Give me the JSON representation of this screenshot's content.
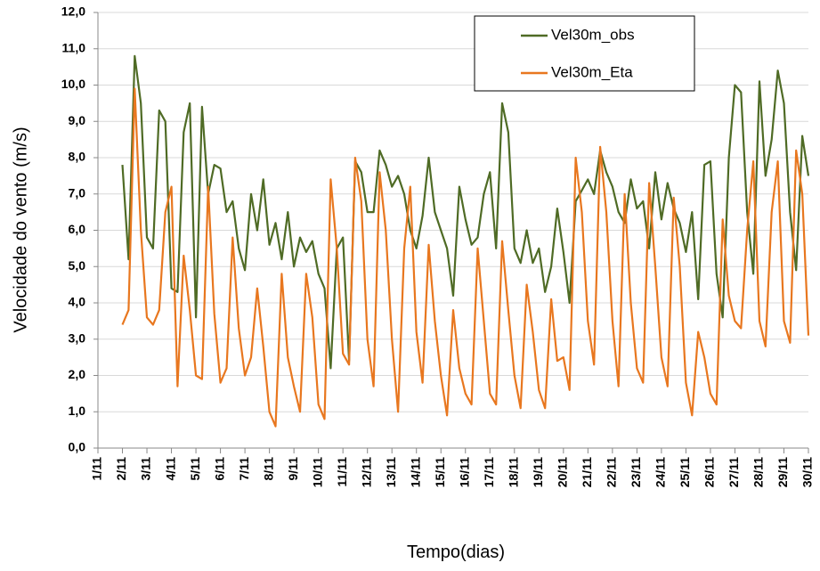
{
  "chart_data": {
    "type": "line",
    "y_label": "Velocidade do vento (m/s)",
    "x_label": "Tempo(dias)",
    "xlim": [
      1,
      30
    ],
    "ylim": [
      0,
      12
    ],
    "grid": true,
    "legend": "top-right",
    "xticks": [
      {
        "value": 1,
        "label": "1/11"
      },
      {
        "value": 2,
        "label": "2/11"
      },
      {
        "value": 3,
        "label": "3/11"
      },
      {
        "value": 4,
        "label": "4/11"
      },
      {
        "value": 5,
        "label": "5/11"
      },
      {
        "value": 6,
        "label": "6/11"
      },
      {
        "value": 7,
        "label": "7/11"
      },
      {
        "value": 8,
        "label": "8/11"
      },
      {
        "value": 9,
        "label": "9/11"
      },
      {
        "value": 10,
        "label": "10/11"
      },
      {
        "value": 11,
        "label": "11/11"
      },
      {
        "value": 12,
        "label": "12/11"
      },
      {
        "value": 13,
        "label": "13/11"
      },
      {
        "value": 14,
        "label": "14/11"
      },
      {
        "value": 15,
        "label": "15/11"
      },
      {
        "value": 16,
        "label": "16/11"
      },
      {
        "value": 17,
        "label": "17/11"
      },
      {
        "value": 18,
        "label": "18/11"
      },
      {
        "value": 19,
        "label": "19/11"
      },
      {
        "value": 20,
        "label": "20/11"
      },
      {
        "value": 21,
        "label": "21/11"
      },
      {
        "value": 22,
        "label": "22/11"
      },
      {
        "value": 23,
        "label": "23/11"
      },
      {
        "value": 24,
        "label": "24/11"
      },
      {
        "value": 25,
        "label": "25/11"
      },
      {
        "value": 26,
        "label": "26/11"
      },
      {
        "value": 27,
        "label": "27/11"
      },
      {
        "value": 28,
        "label": "28/11"
      },
      {
        "value": 29,
        "label": "29/11"
      },
      {
        "value": 30,
        "label": "30/11"
      }
    ],
    "yticks": [
      {
        "value": 0,
        "label": "0,0"
      },
      {
        "value": 1,
        "label": "1,0"
      },
      {
        "value": 2,
        "label": "2,0"
      },
      {
        "value": 3,
        "label": "3,0"
      },
      {
        "value": 4,
        "label": "4,0"
      },
      {
        "value": 5,
        "label": "5,0"
      },
      {
        "value": 6,
        "label": "6,0"
      },
      {
        "value": 7,
        "label": "7,0"
      },
      {
        "value": 8,
        "label": "8,0"
      },
      {
        "value": 9,
        "label": "9,0"
      },
      {
        "value": 10,
        "label": "10,0"
      },
      {
        "value": 11,
        "label": "11,0"
      },
      {
        "value": 12,
        "label": "12,0"
      }
    ],
    "x": [
      2,
      2.25,
      2.5,
      2.75,
      3,
      3.25,
      3.5,
      3.75,
      4,
      4.25,
      4.5,
      4.75,
      5,
      5.25,
      5.5,
      5.75,
      6,
      6.25,
      6.5,
      6.75,
      7,
      7.25,
      7.5,
      7.75,
      8,
      8.25,
      8.5,
      8.75,
      9,
      9.25,
      9.5,
      9.75,
      10,
      10.25,
      10.5,
      10.75,
      11,
      11.25,
      11.5,
      11.75,
      12,
      12.25,
      12.5,
      12.75,
      13,
      13.25,
      13.5,
      13.75,
      14,
      14.25,
      14.5,
      14.75,
      15,
      15.25,
      15.5,
      15.75,
      16,
      16.25,
      16.5,
      16.75,
      17,
      17.25,
      17.5,
      17.75,
      18,
      18.25,
      18.5,
      18.75,
      19,
      19.25,
      19.5,
      19.75,
      20,
      20.25,
      20.5,
      20.75,
      21,
      21.25,
      21.5,
      21.75,
      22,
      22.25,
      22.5,
      22.75,
      23,
      23.25,
      23.5,
      23.75,
      24,
      24.25,
      24.5,
      24.75,
      25,
      25.25,
      25.5,
      25.75,
      26,
      26.25,
      26.5,
      26.75,
      27,
      27.25,
      27.5,
      27.75,
      28,
      28.25,
      28.5,
      28.75,
      29,
      29.25,
      29.5,
      29.75,
      30
    ],
    "series": [
      {
        "name": "Vel30m_obs",
        "color": "#4f6b25",
        "values": [
          7.8,
          5.2,
          10.8,
          9.5,
          5.8,
          5.5,
          9.3,
          9.0,
          4.4,
          4.3,
          8.7,
          9.5,
          3.6,
          9.4,
          7.0,
          7.8,
          7.7,
          6.5,
          6.8,
          5.5,
          4.9,
          7.0,
          6.0,
          7.4,
          5.6,
          6.2,
          5.2,
          6.5,
          5.0,
          5.8,
          5.4,
          5.7,
          4.8,
          4.4,
          2.2,
          5.5,
          5.8,
          2.4,
          7.9,
          7.6,
          6.5,
          6.5,
          8.2,
          7.8,
          7.2,
          7.5,
          7.0,
          6.0,
          5.5,
          6.4,
          8.0,
          6.5,
          6.0,
          5.5,
          4.2,
          7.2,
          6.3,
          5.6,
          5.8,
          7.0,
          7.6,
          5.5,
          9.5,
          8.7,
          5.5,
          5.1,
          6.0,
          5.1,
          5.5,
          4.3,
          5.0,
          6.6,
          5.4,
          4.0,
          6.8,
          7.1,
          7.4,
          7.0,
          8.2,
          7.6,
          7.2,
          6.5,
          6.2,
          7.4,
          6.6,
          6.8,
          5.5,
          7.6,
          6.3,
          7.3,
          6.6,
          6.2,
          5.4,
          6.5,
          4.1,
          7.8,
          7.9,
          4.8,
          3.6,
          8.0,
          10.0,
          9.8,
          6.5,
          4.8,
          10.1,
          7.5,
          8.5,
          10.4,
          9.5,
          6.5,
          4.9,
          8.6,
          7.5
        ]
      },
      {
        "name": "Vel30m_Eta",
        "color": "#e8771f",
        "values": [
          3.4,
          3.8,
          9.9,
          6.0,
          3.6,
          3.4,
          3.8,
          6.5,
          7.2,
          1.7,
          5.3,
          3.8,
          2.0,
          1.9,
          7.2,
          3.7,
          1.8,
          2.2,
          5.8,
          3.3,
          2.0,
          2.5,
          4.4,
          2.8,
          1.0,
          0.6,
          4.8,
          2.5,
          1.7,
          1.0,
          4.8,
          3.6,
          1.2,
          0.8,
          7.4,
          5.5,
          2.6,
          2.3,
          8.0,
          6.8,
          3.0,
          1.7,
          7.6,
          6.0,
          3.0,
          1.0,
          5.5,
          7.2,
          3.2,
          1.8,
          5.6,
          3.5,
          2.0,
          0.9,
          3.8,
          2.2,
          1.5,
          1.2,
          5.5,
          3.5,
          1.5,
          1.2,
          5.7,
          3.8,
          2.0,
          1.1,
          4.5,
          3.2,
          1.6,
          1.1,
          4.1,
          2.4,
          2.5,
          1.6,
          8.0,
          6.5,
          3.5,
          2.3,
          8.3,
          6.5,
          3.5,
          1.7,
          7.0,
          4.0,
          2.2,
          1.8,
          7.3,
          5.0,
          2.5,
          1.7,
          6.9,
          5.0,
          1.8,
          0.9,
          3.2,
          2.5,
          1.5,
          1.2,
          6.3,
          4.2,
          3.5,
          3.3,
          6.0,
          7.9,
          3.5,
          2.8,
          6.5,
          7.9,
          3.5,
          2.9,
          8.2,
          7.0,
          3.1
        ]
      }
    ]
  }
}
